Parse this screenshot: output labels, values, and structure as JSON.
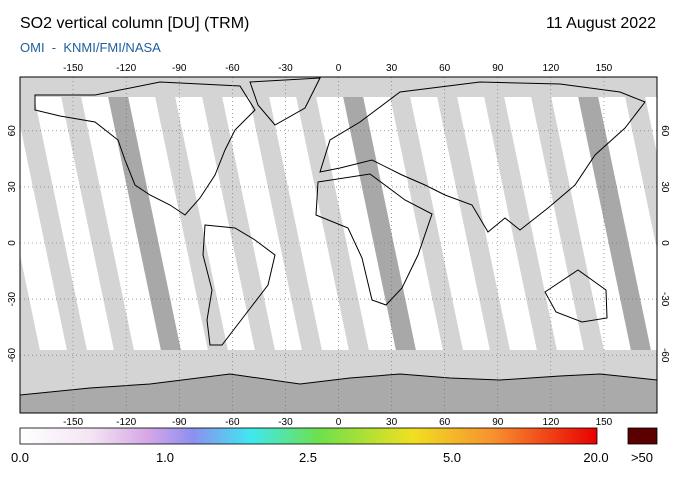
{
  "header": {
    "title": "SO2 vertical column [DU] (TRM)",
    "date": "11 August 2022",
    "source": "OMI  -  KNMI/FMI/NASA"
  },
  "map": {
    "lon_ticks": [
      -150,
      -120,
      -90,
      -60,
      -30,
      0,
      30,
      60,
      90,
      120,
      150
    ],
    "lat_ticks": [
      60,
      30,
      0,
      -30,
      -60
    ]
  },
  "colorbar": {
    "labels": [
      "0.0",
      "1.0",
      "2.5",
      "5.0",
      "20.0",
      ">50"
    ]
  }
}
